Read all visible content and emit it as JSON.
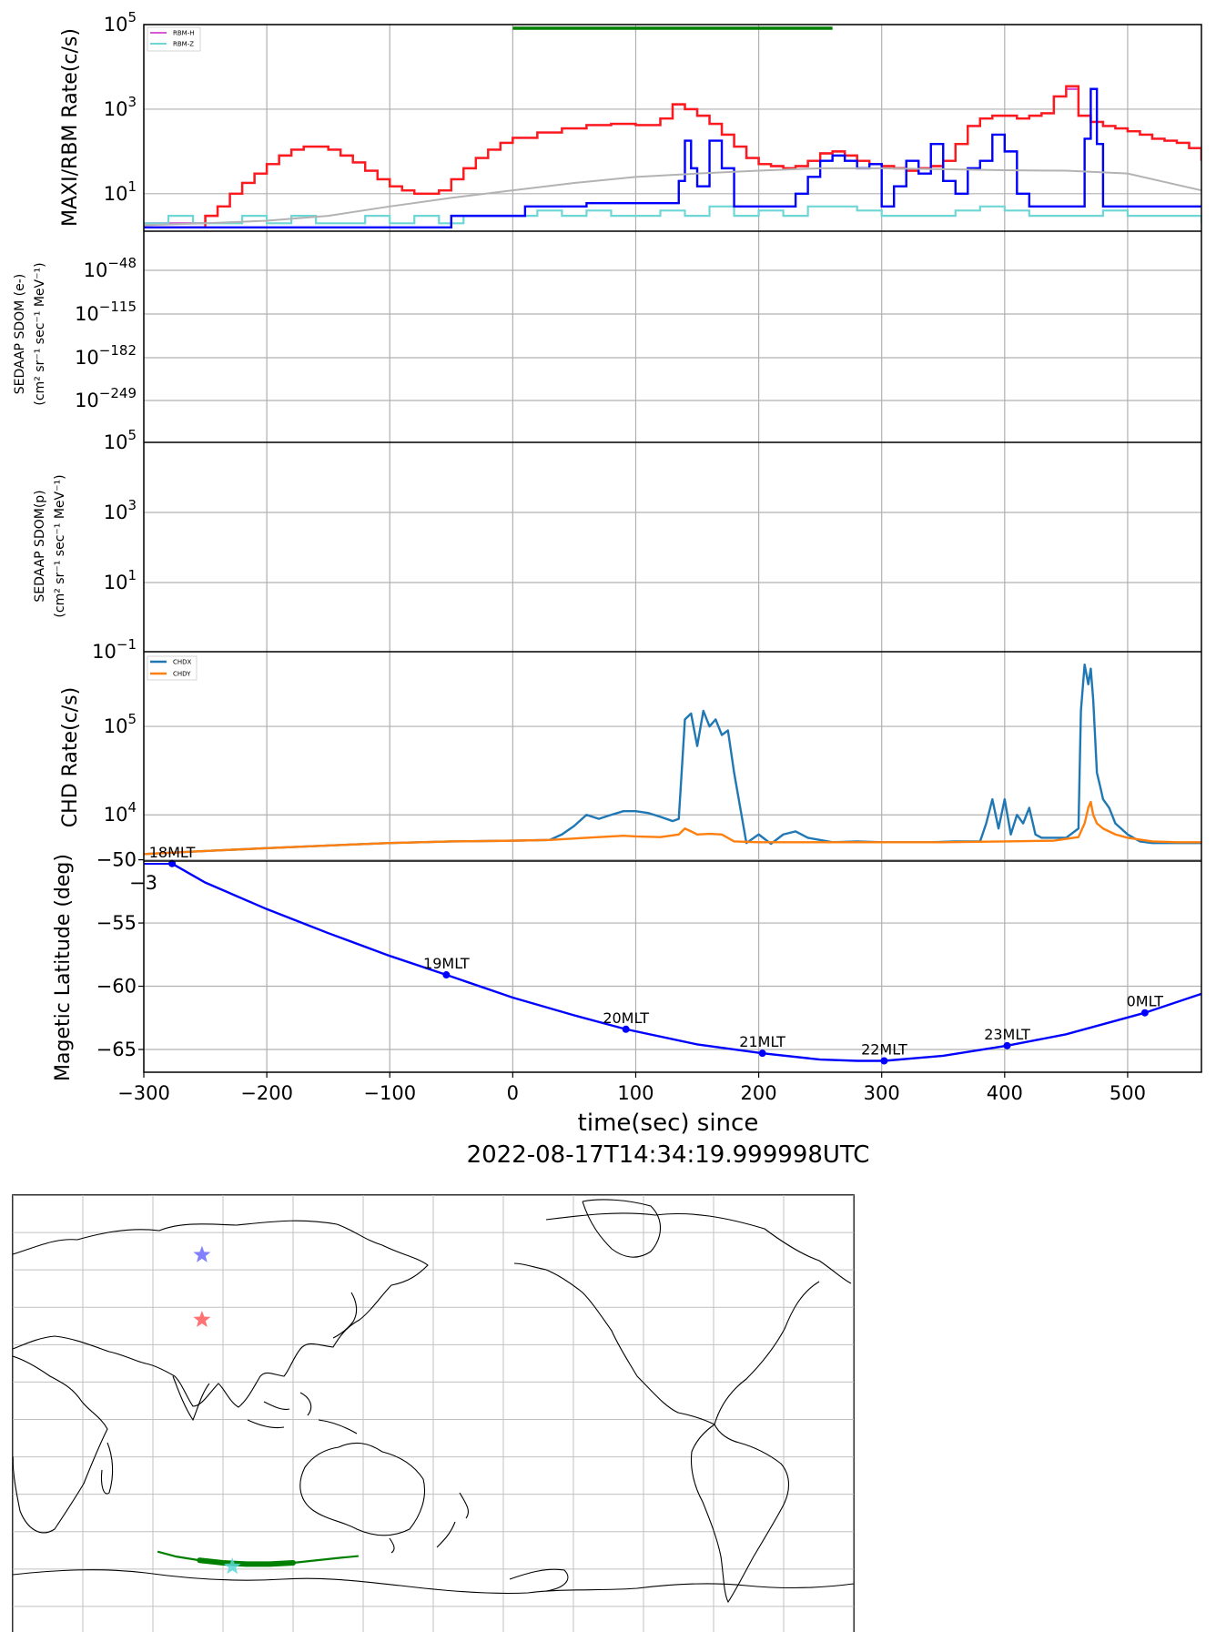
{
  "chart_data": [
    {
      "type": "line",
      "panel": "maxi_rbm",
      "ylabel": "MAXI/RBM Rate(c/s)",
      "yscale": "log",
      "ylim": [
        1.3,
        100000
      ],
      "xlim": [
        -300,
        560
      ],
      "yticks": [
        {
          "v": 10,
          "l": "10",
          "e": "1"
        },
        {
          "v": 1000,
          "l": "10",
          "e": "3"
        },
        {
          "v": 100000,
          "l": "10",
          "e": "5"
        }
      ],
      "legend": [
        "RBM-H",
        "RBM-Z"
      ],
      "legend_position": "top-left",
      "grid": true,
      "green_bar": [
        0,
        260
      ],
      "series": [
        {
          "name": "RBM-H",
          "color": "#d65ad6",
          "x": [
            -300,
            -260,
            -250,
            -240,
            -230,
            -220,
            -210,
            -200,
            -190,
            -180,
            -170,
            -160,
            -150,
            -140,
            -130,
            -120,
            -110,
            -100,
            -90,
            -80,
            -70,
            -60,
            -50,
            -40,
            -30,
            -20,
            -10,
            0,
            20,
            40,
            60,
            80,
            100,
            120,
            130,
            140,
            150,
            160,
            170,
            180,
            190,
            200,
            210,
            220,
            230,
            240,
            250,
            260,
            270,
            280,
            290,
            300,
            310,
            320,
            330,
            340,
            350,
            360,
            370,
            380,
            390,
            400,
            410,
            420,
            430,
            440,
            450,
            460,
            470,
            480,
            490,
            500,
            510,
            520,
            530,
            540,
            550,
            560
          ],
          "y": [
            2,
            2,
            3,
            5,
            10,
            18,
            30,
            50,
            80,
            110,
            130,
            130,
            110,
            80,
            55,
            35,
            22,
            15,
            12,
            10,
            10,
            12,
            22,
            40,
            70,
            110,
            160,
            210,
            280,
            350,
            420,
            450,
            420,
            600,
            1300,
            1000,
            700,
            450,
            250,
            130,
            70,
            50,
            45,
            40,
            45,
            60,
            90,
            100,
            80,
            60,
            50,
            45,
            40,
            35,
            40,
            45,
            60,
            150,
            400,
            600,
            700,
            700,
            600,
            700,
            800,
            2000,
            3000,
            700,
            500,
            400,
            350,
            300,
            250,
            200,
            180,
            160,
            120,
            60
          ]
        },
        {
          "name": "RBM-Z",
          "color": "#6fd6d6",
          "x": [
            -300,
            -280,
            -260,
            -240,
            -220,
            -200,
            -180,
            -160,
            -140,
            -120,
            -100,
            -80,
            -60,
            -40,
            -20,
            0,
            20,
            40,
            60,
            80,
            100,
            120,
            140,
            160,
            180,
            200,
            220,
            240,
            260,
            280,
            300,
            320,
            340,
            360,
            380,
            400,
            420,
            440,
            460,
            480,
            500,
            520,
            540,
            560
          ],
          "y": [
            2,
            3,
            2,
            2,
            3,
            2,
            3,
            2,
            2,
            3,
            2,
            3,
            2,
            3,
            3,
            3,
            4,
            3,
            4,
            3,
            3,
            4,
            3,
            5,
            3,
            4,
            3,
            5,
            5,
            4,
            3,
            3,
            3,
            4,
            5,
            4,
            3,
            3,
            3,
            4,
            3,
            3,
            3,
            2
          ]
        },
        {
          "name": "red",
          "color": "#ff1a1a",
          "x": [
            -300,
            -260,
            -250,
            -240,
            -230,
            -220,
            -210,
            -200,
            -190,
            -180,
            -170,
            -160,
            -150,
            -140,
            -130,
            -120,
            -110,
            -100,
            -90,
            -80,
            -70,
            -60,
            -50,
            -40,
            -30,
            -20,
            -10,
            0,
            20,
            40,
            60,
            80,
            100,
            120,
            130,
            140,
            150,
            160,
            170,
            180,
            190,
            200,
            210,
            220,
            230,
            240,
            250,
            260,
            270,
            280,
            290,
            300,
            310,
            320,
            330,
            340,
            350,
            360,
            370,
            380,
            390,
            400,
            410,
            420,
            430,
            440,
            450,
            460,
            470,
            480,
            490,
            500,
            510,
            520,
            530,
            540,
            550,
            560
          ],
          "y": [
            1.6,
            1.6,
            3,
            5,
            10,
            18,
            30,
            50,
            80,
            110,
            130,
            130,
            110,
            80,
            55,
            35,
            22,
            15,
            12,
            10,
            10,
            12,
            22,
            40,
            70,
            110,
            160,
            210,
            280,
            350,
            420,
            450,
            420,
            600,
            1300,
            1000,
            700,
            450,
            250,
            130,
            70,
            50,
            45,
            40,
            45,
            60,
            90,
            100,
            80,
            60,
            50,
            45,
            40,
            35,
            40,
            45,
            60,
            150,
            400,
            600,
            700,
            700,
            600,
            700,
            800,
            2000,
            3500,
            700,
            500,
            400,
            350,
            300,
            250,
            200,
            180,
            160,
            120,
            60
          ]
        },
        {
          "name": "blue",
          "color": "#0000ff",
          "x": [
            -300,
            -260,
            -50,
            10,
            60,
            130,
            135,
            140,
            145,
            150,
            160,
            170,
            180,
            200,
            220,
            230,
            240,
            250,
            260,
            270,
            280,
            290,
            300,
            310,
            320,
            330,
            340,
            350,
            360,
            370,
            380,
            390,
            400,
            410,
            420,
            440,
            460,
            465,
            470,
            475,
            480,
            500,
            520,
            540,
            560
          ],
          "y": [
            1.6,
            1.6,
            3,
            5,
            6,
            6,
            20,
            180,
            40,
            15,
            180,
            40,
            5,
            5,
            5,
            10,
            25,
            60,
            80,
            60,
            40,
            50,
            5,
            15,
            60,
            30,
            150,
            20,
            10,
            40,
            60,
            250,
            100,
            10,
            5,
            5,
            5,
            200,
            3000,
            150,
            5,
            5,
            5,
            5,
            5
          ]
        },
        {
          "name": "gray",
          "color": "#b3b3b3",
          "x": [
            -300,
            -250,
            -200,
            -150,
            -100,
            -50,
            0,
            50,
            100,
            150,
            200,
            250,
            300,
            350,
            400,
            450,
            500,
            560
          ],
          "y": [
            1.8,
            2,
            2.3,
            3,
            5,
            8,
            12,
            18,
            25,
            30,
            35,
            40,
            40,
            38,
            36,
            35,
            30,
            12
          ]
        }
      ]
    },
    {
      "type": "line",
      "panel": "sdom_e",
      "ylabel_line1": "SEDAAP SDOM (e-)",
      "ylabel_line2": "(cm² sr⁻¹ sec⁻¹ MeV⁻¹)",
      "yscale": "log",
      "yticks": [
        "10⁻⁴⁸",
        "10⁻¹¹⁵",
        "10⁻¹⁸²",
        "10⁻²⁴⁹"
      ],
      "ytick_exps": [
        "−48",
        "−115",
        "−182",
        "−249"
      ],
      "grid": true,
      "series": []
    },
    {
      "type": "line",
      "panel": "sdom_p",
      "ylabel_line1": "SEDAAP SDOM(p)",
      "ylabel_line2": "(cm² sr⁻¹ sec⁻¹ MeV⁻¹)",
      "yscale": "log",
      "ylim": [
        0.1,
        100000
      ],
      "ytick_exps": [
        "5",
        "3",
        "1",
        "−1"
      ],
      "grid": true,
      "series": []
    },
    {
      "type": "line",
      "panel": "chd",
      "ylabel": "CHD Rate(c/s)",
      "yscale": "log",
      "ylim": [
        3000,
        700000
      ],
      "ytick_exps": [
        "5",
        "4"
      ],
      "legend": [
        "CHDX",
        "CHDY"
      ],
      "legend_position": "top-left",
      "grid": true,
      "series": [
        {
          "name": "CHDX",
          "color": "#1f77b4",
          "x": [
            -300,
            -250,
            -200,
            -150,
            -100,
            -50,
            0,
            30,
            40,
            50,
            60,
            70,
            80,
            90,
            100,
            110,
            120,
            130,
            135,
            140,
            145,
            150,
            155,
            160,
            165,
            170,
            175,
            180,
            190,
            200,
            210,
            220,
            230,
            240,
            260,
            280,
            300,
            320,
            340,
            360,
            380,
            385,
            390,
            395,
            400,
            405,
            410,
            415,
            420,
            425,
            430,
            440,
            450,
            460,
            462,
            465,
            468,
            470,
            472,
            475,
            478,
            480,
            485,
            490,
            500,
            510,
            520,
            540,
            560
          ],
          "y": [
            3600,
            3900,
            4200,
            4500,
            4800,
            5000,
            5100,
            5200,
            6000,
            7500,
            10000,
            9000,
            10000,
            11000,
            11000,
            10500,
            9500,
            8500,
            9000,
            120000,
            140000,
            60000,
            150000,
            100000,
            120000,
            80000,
            90000,
            30000,
            4800,
            6000,
            4700,
            6000,
            6500,
            5500,
            4900,
            5000,
            4900,
            4900,
            4900,
            5000,
            5000,
            8000,
            15000,
            7000,
            15000,
            6000,
            10000,
            8000,
            12000,
            6000,
            5500,
            5500,
            5500,
            7000,
            150000,
            500000,
            300000,
            450000,
            200000,
            30000,
            20000,
            15000,
            12000,
            8000,
            6000,
            5000,
            4800,
            4800,
            4800
          ]
        },
        {
          "name": "CHDY",
          "color": "#ff7f0e",
          "x": [
            -300,
            -250,
            -200,
            -150,
            -100,
            -50,
            0,
            30,
            60,
            90,
            100,
            120,
            135,
            140,
            145,
            150,
            160,
            170,
            180,
            200,
            250,
            300,
            350,
            400,
            440,
            460,
            465,
            468,
            470,
            472,
            475,
            480,
            490,
            500,
            520,
            540,
            560
          ],
          "y": [
            3600,
            3900,
            4200,
            4500,
            4800,
            5000,
            5100,
            5200,
            5500,
            5800,
            5700,
            5600,
            6000,
            7000,
            6500,
            6000,
            6100,
            6000,
            5000,
            4900,
            4900,
            4900,
            4900,
            5000,
            5100,
            5600,
            8000,
            12000,
            14000,
            10000,
            8000,
            7000,
            6000,
            5500,
            5000,
            4900,
            4900
          ]
        }
      ]
    },
    {
      "type": "line",
      "panel": "maglat",
      "ylabel": "Magetic Latitude  (deg)",
      "ylim": [
        -66.8,
        -50.1
      ],
      "yticks": [
        -50,
        -55,
        -60,
        -65
      ],
      "ytick_labels": [
        "−50",
        "−55",
        "−60",
        "−65"
      ],
      "xticks": [
        -300,
        -200,
        -100,
        0,
        100,
        200,
        300,
        400,
        500
      ],
      "xtick_labels": [
        "−300",
        "−200",
        "−100",
        "0",
        "100",
        "200",
        "300",
        "400",
        "500"
      ],
      "xlabel_line1": "time(sec) since",
      "xlabel_line2": "2022-08-17T14:34:19.999998UTC",
      "overlap_text": "−3",
      "grid": true,
      "series": [
        {
          "name": "latitude",
          "color": "#0000ff",
          "x": [
            -300,
            -277,
            -250,
            -200,
            -150,
            -100,
            -54,
            0,
            50,
            92,
            150,
            203,
            250,
            280,
            302,
            350,
            402,
            450,
            514,
            560
          ],
          "y": [
            -50.3,
            -50.3,
            -51.8,
            -53.9,
            -55.8,
            -57.6,
            -59.1,
            -60.9,
            -62.3,
            -63.4,
            -64.6,
            -65.3,
            -65.8,
            -65.9,
            -65.9,
            -65.5,
            -64.7,
            -63.8,
            -62.1,
            -60.6
          ]
        }
      ],
      "markers": [
        {
          "x": -277,
          "y": -50.3,
          "label": "18MLT"
        },
        {
          "x": -54,
          "y": -59.1,
          "label": "19MLT"
        },
        {
          "x": 92,
          "y": -63.4,
          "label": "20MLT"
        },
        {
          "x": 203,
          "y": -65.3,
          "label": "21MLT"
        },
        {
          "x": 302,
          "y": -65.9,
          "label": "22MLT"
        },
        {
          "x": 402,
          "y": -64.7,
          "label": "23MLT"
        },
        {
          "x": 514,
          "y": -62.1,
          "label": "0MLT"
        }
      ]
    },
    {
      "type": "scatter",
      "panel": "map",
      "projection": "plate-carree, central meridian 180",
      "grid": true,
      "track_color": "#008000",
      "track_lonlat": [
        [
          62,
          -53
        ],
        [
          70,
          -55
        ],
        [
          80,
          -56.5
        ],
        [
          90,
          -57.5
        ],
        [
          100,
          -58
        ],
        [
          110,
          -58
        ],
        [
          120,
          -57.5
        ],
        [
          130,
          -56.5
        ],
        [
          140,
          -55.5
        ],
        [
          148,
          -54.8
        ]
      ],
      "track_thick_range": [
        90,
        114
      ],
      "stars": [
        {
          "name": "blue-star",
          "color": "#6b6bff",
          "lon": 81,
          "lat": 66
        },
        {
          "name": "red-star",
          "color": "#ff5a5a",
          "lon": 81,
          "lat": 40
        },
        {
          "name": "cyan-star",
          "color": "#5ad6d6",
          "lon": 94,
          "lat": -59
        }
      ]
    }
  ]
}
